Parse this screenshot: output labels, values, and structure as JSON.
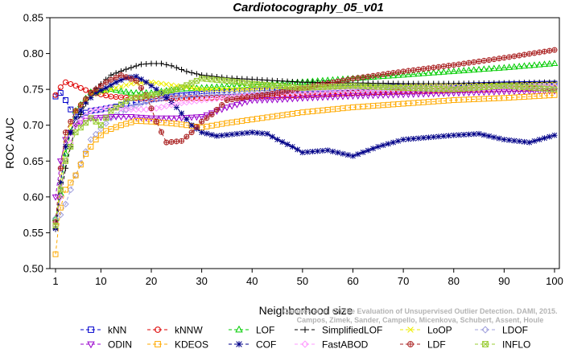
{
  "chart_data": {
    "type": "line",
    "title": "Cardiotocography_05_v01",
    "xlabel": "Neighborhood size",
    "ylabel": "ROC AUC",
    "xlim": [
      1,
      100
    ],
    "ylim": [
      0.5,
      0.85
    ],
    "x_ticks": [
      1,
      10,
      20,
      30,
      40,
      50,
      60,
      70,
      80,
      90,
      100
    ],
    "y_ticks": [
      "0.50",
      "0.55",
      "0.60",
      "0.65",
      "0.70",
      "0.75",
      "0.80",
      "0.85"
    ],
    "grid": false,
    "legend_position": "bottom",
    "watermark": [
      "Campos et al. On the Evaluation of Unsupervised Outlier Detection. DAMI, 2015.",
      "Campos, Zimek, Sander, Campello, Micenkova, Schubert, Assent, Houle"
    ],
    "series": [
      {
        "name": "kNN",
        "color": "#0000cc",
        "marker": "square",
        "points": [
          [
            1,
            0.74
          ],
          [
            2,
            0.745
          ],
          [
            3,
            0.735
          ],
          [
            4,
            0.722
          ],
          [
            6,
            0.715
          ],
          [
            8,
            0.72
          ],
          [
            10,
            0.722
          ],
          [
            13,
            0.726
          ],
          [
            15,
            0.73
          ],
          [
            18,
            0.733
          ],
          [
            20,
            0.736
          ],
          [
            25,
            0.741
          ],
          [
            30,
            0.744
          ],
          [
            35,
            0.746
          ],
          [
            40,
            0.748
          ],
          [
            50,
            0.75
          ],
          [
            60,
            0.752
          ],
          [
            70,
            0.754
          ],
          [
            80,
            0.755
          ],
          [
            90,
            0.757
          ],
          [
            100,
            0.758
          ]
        ]
      },
      {
        "name": "kNNW",
        "color": "#dd0000",
        "marker": "circle",
        "points": [
          [
            1,
            0.742
          ],
          [
            2,
            0.753
          ],
          [
            3,
            0.76
          ],
          [
            5,
            0.755
          ],
          [
            8,
            0.746
          ],
          [
            12,
            0.74
          ],
          [
            16,
            0.738
          ],
          [
            20,
            0.737
          ],
          [
            30,
            0.738
          ],
          [
            40,
            0.74
          ],
          [
            50,
            0.742
          ],
          [
            60,
            0.745
          ],
          [
            70,
            0.747
          ],
          [
            80,
            0.749
          ],
          [
            90,
            0.75
          ],
          [
            100,
            0.752
          ]
        ]
      },
      {
        "name": "LOF",
        "color": "#00cc00",
        "marker": "triangle",
        "points": [
          [
            1,
            0.57
          ],
          [
            2,
            0.605
          ],
          [
            3,
            0.66
          ],
          [
            5,
            0.72
          ],
          [
            8,
            0.746
          ],
          [
            12,
            0.75
          ],
          [
            16,
            0.745
          ],
          [
            20,
            0.745
          ],
          [
            25,
            0.75
          ],
          [
            30,
            0.752
          ],
          [
            40,
            0.756
          ],
          [
            50,
            0.76
          ],
          [
            60,
            0.765
          ],
          [
            70,
            0.77
          ],
          [
            80,
            0.775
          ],
          [
            90,
            0.78
          ],
          [
            100,
            0.786
          ]
        ]
      },
      {
        "name": "SimplifiedLOF",
        "color": "#000000",
        "marker": "plus",
        "points": [
          [
            1,
            0.555
          ],
          [
            2,
            0.6
          ],
          [
            3,
            0.64
          ],
          [
            5,
            0.7
          ],
          [
            8,
            0.745
          ],
          [
            12,
            0.77
          ],
          [
            15,
            0.778
          ],
          [
            18,
            0.785
          ],
          [
            20,
            0.786
          ],
          [
            22,
            0.786
          ],
          [
            24,
            0.783
          ],
          [
            27,
            0.775
          ],
          [
            30,
            0.77
          ],
          [
            35,
            0.766
          ],
          [
            40,
            0.764
          ],
          [
            45,
            0.762
          ],
          [
            50,
            0.76
          ],
          [
            60,
            0.759
          ],
          [
            70,
            0.758
          ],
          [
            80,
            0.758
          ],
          [
            90,
            0.759
          ],
          [
            100,
            0.76
          ]
        ]
      },
      {
        "name": "LoOP",
        "color": "#eeee00",
        "marker": "x",
        "points": [
          [
            1,
            0.56
          ],
          [
            2,
            0.62
          ],
          [
            3,
            0.68
          ],
          [
            5,
            0.72
          ],
          [
            8,
            0.742
          ],
          [
            12,
            0.75
          ],
          [
            16,
            0.758
          ],
          [
            20,
            0.76
          ],
          [
            25,
            0.755
          ],
          [
            30,
            0.75
          ],
          [
            40,
            0.75
          ],
          [
            50,
            0.751
          ],
          [
            60,
            0.752
          ],
          [
            70,
            0.754
          ],
          [
            80,
            0.755
          ],
          [
            90,
            0.756
          ],
          [
            100,
            0.757
          ]
        ]
      },
      {
        "name": "LDOF",
        "color": "#a0a0dd",
        "marker": "diamond",
        "points": [
          [
            1,
            0.57
          ],
          [
            2,
            0.575
          ],
          [
            3,
            0.59
          ],
          [
            5,
            0.63
          ],
          [
            8,
            0.68
          ],
          [
            12,
            0.71
          ],
          [
            16,
            0.725
          ],
          [
            20,
            0.735
          ],
          [
            25,
            0.74
          ],
          [
            30,
            0.742
          ],
          [
            40,
            0.745
          ],
          [
            50,
            0.748
          ],
          [
            60,
            0.75
          ],
          [
            70,
            0.751
          ],
          [
            80,
            0.752
          ],
          [
            90,
            0.753
          ],
          [
            100,
            0.755
          ]
        ]
      },
      {
        "name": "ODIN",
        "color": "#9900cc",
        "marker": "triangle-down",
        "points": [
          [
            1,
            0.6
          ],
          [
            2,
            0.65
          ],
          [
            3,
            0.68
          ],
          [
            5,
            0.7
          ],
          [
            8,
            0.71
          ],
          [
            12,
            0.712
          ],
          [
            16,
            0.712
          ],
          [
            20,
            0.71
          ],
          [
            25,
            0.71
          ],
          [
            30,
            0.712
          ],
          [
            35,
            0.725
          ],
          [
            40,
            0.735
          ],
          [
            45,
            0.736
          ],
          [
            50,
            0.738
          ],
          [
            60,
            0.741
          ],
          [
            70,
            0.743
          ],
          [
            80,
            0.745
          ],
          [
            90,
            0.747
          ],
          [
            100,
            0.748
          ]
        ]
      },
      {
        "name": "KDEOS",
        "color": "#ffaa00",
        "marker": "square",
        "points": [
          [
            1,
            0.52
          ],
          [
            2,
            0.585
          ],
          [
            3,
            0.61
          ],
          [
            5,
            0.63
          ],
          [
            7,
            0.66
          ],
          [
            9,
            0.68
          ],
          [
            11,
            0.692
          ],
          [
            14,
            0.7
          ],
          [
            17,
            0.706
          ],
          [
            20,
            0.705
          ],
          [
            25,
            0.702
          ],
          [
            30,
            0.697
          ],
          [
            35,
            0.703
          ],
          [
            40,
            0.708
          ],
          [
            45,
            0.713
          ],
          [
            50,
            0.718
          ],
          [
            60,
            0.725
          ],
          [
            70,
            0.73
          ],
          [
            80,
            0.735
          ],
          [
            90,
            0.738
          ],
          [
            100,
            0.742
          ]
        ]
      },
      {
        "name": "COF",
        "color": "#000088",
        "marker": "star",
        "points": [
          [
            1,
            0.556
          ],
          [
            2,
            0.62
          ],
          [
            3,
            0.67
          ],
          [
            5,
            0.71
          ],
          [
            7,
            0.732
          ],
          [
            9,
            0.745
          ],
          [
            11,
            0.752
          ],
          [
            13,
            0.76
          ],
          [
            15,
            0.766
          ],
          [
            17,
            0.768
          ],
          [
            19,
            0.76
          ],
          [
            22,
            0.745
          ],
          [
            25,
            0.725
          ],
          [
            28,
            0.7
          ],
          [
            30,
            0.69
          ],
          [
            33,
            0.685
          ],
          [
            37,
            0.688
          ],
          [
            40,
            0.69
          ],
          [
            43,
            0.688
          ],
          [
            45,
            0.68
          ],
          [
            48,
            0.67
          ],
          [
            50,
            0.662
          ],
          [
            55,
            0.665
          ],
          [
            60,
            0.657
          ],
          [
            65,
            0.67
          ],
          [
            70,
            0.68
          ],
          [
            75,
            0.683
          ],
          [
            80,
            0.686
          ],
          [
            85,
            0.688
          ],
          [
            90,
            0.68
          ],
          [
            95,
            0.676
          ],
          [
            100,
            0.686
          ]
        ]
      },
      {
        "name": "FastABOD",
        "color": "#ff99ff",
        "marker": "diamond",
        "points": [
          [
            1,
            0.56
          ],
          [
            2,
            0.6
          ],
          [
            3,
            0.65
          ],
          [
            5,
            0.7
          ],
          [
            8,
            0.72
          ],
          [
            12,
            0.725
          ],
          [
            16,
            0.722
          ],
          [
            20,
            0.722
          ],
          [
            25,
            0.73
          ],
          [
            30,
            0.735
          ],
          [
            40,
            0.742
          ],
          [
            50,
            0.746
          ],
          [
            60,
            0.748
          ],
          [
            70,
            0.75
          ],
          [
            80,
            0.751
          ],
          [
            90,
            0.752
          ],
          [
            100,
            0.754
          ]
        ]
      },
      {
        "name": "LDF",
        "color": "#aa2222",
        "marker": "circle-plus",
        "points": [
          [
            1,
            0.565
          ],
          [
            2,
            0.64
          ],
          [
            3,
            0.69
          ],
          [
            5,
            0.72
          ],
          [
            8,
            0.745
          ],
          [
            11,
            0.76
          ],
          [
            14,
            0.77
          ],
          [
            17,
            0.762
          ],
          [
            19,
            0.742
          ],
          [
            21,
            0.705
          ],
          [
            23,
            0.676
          ],
          [
            26,
            0.678
          ],
          [
            28,
            0.69
          ],
          [
            30,
            0.705
          ],
          [
            32,
            0.715
          ],
          [
            35,
            0.735
          ],
          [
            40,
            0.74
          ],
          [
            45,
            0.745
          ],
          [
            50,
            0.752
          ],
          [
            60,
            0.765
          ],
          [
            70,
            0.775
          ],
          [
            80,
            0.784
          ],
          [
            90,
            0.794
          ],
          [
            100,
            0.805
          ]
        ]
      },
      {
        "name": "INFLO",
        "color": "#99cc33",
        "marker": "asterisk",
        "points": [
          [
            1,
            0.56
          ],
          [
            2,
            0.61
          ],
          [
            3,
            0.65
          ],
          [
            5,
            0.69
          ],
          [
            8,
            0.71
          ],
          [
            10,
            0.7
          ],
          [
            12,
            0.72
          ],
          [
            16,
            0.738
          ],
          [
            20,
            0.742
          ],
          [
            25,
            0.75
          ],
          [
            30,
            0.765
          ],
          [
            35,
            0.762
          ],
          [
            40,
            0.758
          ],
          [
            45,
            0.755
          ],
          [
            50,
            0.752
          ],
          [
            60,
            0.755
          ],
          [
            70,
            0.752
          ],
          [
            80,
            0.75
          ],
          [
            90,
            0.755
          ],
          [
            100,
            0.75
          ]
        ]
      }
    ]
  }
}
